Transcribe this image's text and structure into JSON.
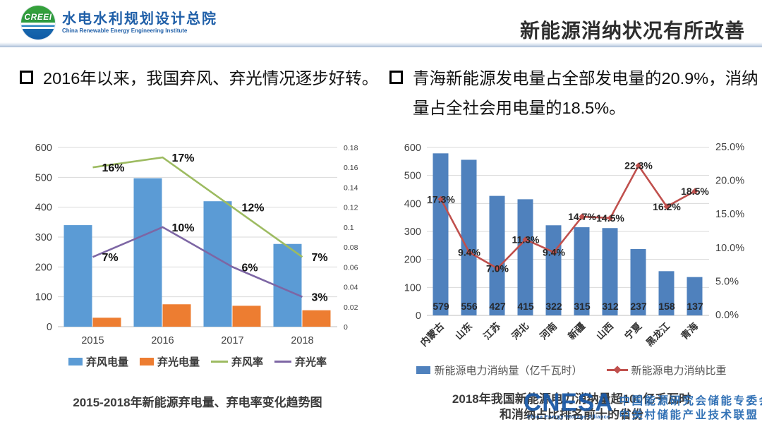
{
  "header": {
    "logo": {
      "acronym": "CREEI",
      "org_cn": "水电水利规划设计总院",
      "org_en": "China Renewable Energy Engineering Institute",
      "brand_color": "#1F5FA8"
    },
    "title": "新能源消纳状况有所改善"
  },
  "left_panel": {
    "bullet_text": "2016年以来，我国弃风、弃光情况逐步好转。",
    "caption": "2015-2018年新能源弃电量、弃电率变化趋势图"
  },
  "right_panel": {
    "bullet_text": "青海新能源发电量占全部发电量的20.9%，消纳量占全社会用电量的18.5%。",
    "caption_line1": "2018年我国新能源电力消纳量超100亿千瓦时",
    "caption_line2": "和消纳占比排名前十的省份"
  },
  "watermark": {
    "name": "CNESA",
    "subtitle": "China Energy Storage Alliance",
    "org_line1": "中国能源研究会储能专委会",
    "org_line2": "中关村储能产业技术联盟",
    "color": "#1C5AA6"
  },
  "chart_data": [
    {
      "type": "bar",
      "subtype": "bar+line combo",
      "categories": [
        "2015",
        "2016",
        "2017",
        "2018"
      ],
      "bar_series": [
        {
          "name": "弃风电量",
          "color": "#5B9BD5",
          "values": [
            340,
            497,
            420,
            277
          ]
        },
        {
          "name": "弃光电量",
          "color": "#ED7D31",
          "values": [
            30,
            75,
            70,
            55
          ]
        }
      ],
      "line_series": [
        {
          "name": "弃风率",
          "color": "#9DBB61",
          "axis": "right",
          "values": [
            0.16,
            0.17,
            0.12,
            0.07
          ],
          "labels": [
            "16%",
            "17%",
            "12%",
            "7%"
          ]
        },
        {
          "name": "弃光率",
          "color": "#7D66A4",
          "axis": "right",
          "values": [
            0.07,
            0.1,
            0.06,
            0.03
          ],
          "labels": [
            "7%",
            "10%",
            "6%",
            "3%"
          ]
        }
      ],
      "left_axis": {
        "ticks": [
          "0",
          "100",
          "200",
          "300",
          "400",
          "500",
          "600"
        ],
        "range": [
          0,
          600
        ]
      },
      "right_axis": {
        "ticks": [
          "0",
          "0.02",
          "0.04",
          "0.06",
          "0.08",
          "0.1",
          "0.12",
          "0.14",
          "0.16",
          "0.18"
        ],
        "range": [
          0,
          0.18
        ]
      },
      "grid": true,
      "legend_position": "bottom",
      "title": "2015-2018年新能源弃电量、弃电率变化趋势图"
    },
    {
      "type": "bar",
      "subtype": "bar+line combo",
      "categories": [
        "内蒙古",
        "山东",
        "江苏",
        "河北",
        "河南",
        "新疆",
        "山西",
        "宁夏",
        "黑龙江",
        "青海"
      ],
      "bar_series": [
        {
          "name": "新能源电力消纳量（亿千瓦时）",
          "color": "#4F81BD",
          "values": [
            579,
            556,
            427,
            415,
            322,
            315,
            312,
            237,
            158,
            137
          ]
        }
      ],
      "line_series": [
        {
          "name": "新能源电力消纳比重",
          "color": "#C0504D",
          "axis": "right",
          "values": [
            17.3,
            9.4,
            7.0,
            11.3,
            9.4,
            14.7,
            14.5,
            22.3,
            16.2,
            18.5
          ],
          "labels": [
            "17.3%",
            "9.4%",
            "7.0%",
            "11.3%",
            "9.4%",
            "14.7%",
            "14.5%",
            "22.3%",
            "16.2%",
            "18.5%"
          ]
        }
      ],
      "left_axis": {
        "ticks": [
          "0",
          "100",
          "200",
          "300",
          "400",
          "500",
          "600"
        ],
        "range": [
          0,
          600
        ]
      },
      "right_axis": {
        "ticks": [
          "0.0%",
          "5.0%",
          "10.0%",
          "15.0%",
          "20.0%",
          "25.0%"
        ],
        "range": [
          0,
          25
        ]
      },
      "grid": true,
      "legend_position": "bottom",
      "title": "2018年我国新能源电力消纳量超100亿千瓦时和消纳占比排名前十的省份"
    }
  ]
}
